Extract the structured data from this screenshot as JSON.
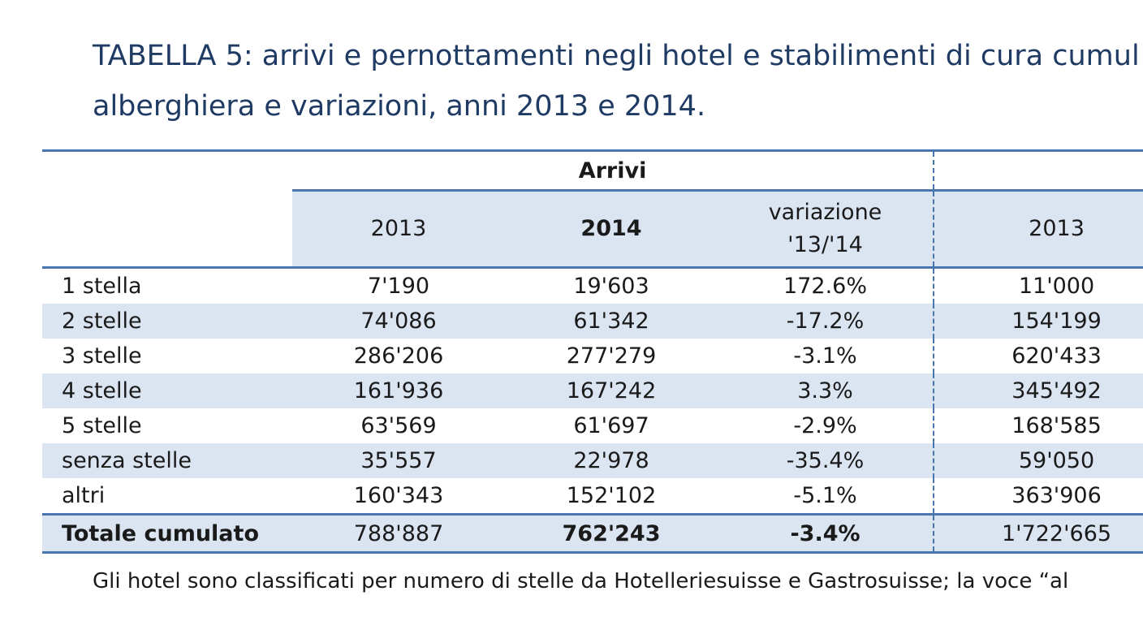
{
  "title": {
    "line1": "TABELLA 5: arrivi e pernottamenti negli hotel e stabilimenti di cura cumul",
    "line2": "alberghiera e variazioni, anni 2013 e 2014."
  },
  "table": {
    "group_header": "Arrivi",
    "columns": {
      "y2013": "2013",
      "y2014": "2014",
      "variazione_line1": "variazione",
      "variazione_line2": "'13/'14",
      "right_y2013": "2013"
    },
    "rows": [
      {
        "label": "1 stella",
        "v2013": "7'190",
        "v2014": "19'603",
        "var": "172.6%",
        "right2013": "11'000"
      },
      {
        "label": "2 stelle",
        "v2013": "74'086",
        "v2014": "61'342",
        "var": "-17.2%",
        "right2013": "154'199"
      },
      {
        "label": "3 stelle",
        "v2013": "286'206",
        "v2014": "277'279",
        "var": "-3.1%",
        "right2013": "620'433"
      },
      {
        "label": "4 stelle",
        "v2013": "161'936",
        "v2014": "167'242",
        "var": "3.3%",
        "right2013": "345'492"
      },
      {
        "label": "5 stelle",
        "v2013": "63'569",
        "v2014": "61'697",
        "var": "-2.9%",
        "right2013": "168'585"
      },
      {
        "label": "senza stelle",
        "v2013": "35'557",
        "v2014": "22'978",
        "var": "-35.4%",
        "right2013": "59'050"
      },
      {
        "label": "altri",
        "v2013": "160'343",
        "v2014": "152'102",
        "var": "-5.1%",
        "right2013": "363'906"
      }
    ],
    "total": {
      "label": "Totale cumulato",
      "v2013": "788'887",
      "v2014": "762'243",
      "var": "-3.4%",
      "right2013": "1'722'665"
    }
  },
  "note": "Gli hotel sono classificati per numero di stelle da Hotelleriesuisse e Gastrosuisse; la voce “al",
  "colors": {
    "title": "#1f3b64",
    "rule": "#4a76b0",
    "band": "#dbe4f1"
  }
}
